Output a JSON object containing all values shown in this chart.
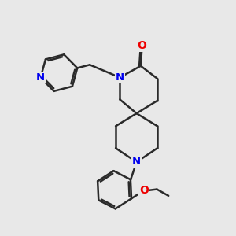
{
  "bg_color": "#e8e8e8",
  "bond_color": "#2a2a2a",
  "N_color": "#0000ee",
  "O_color": "#ee0000",
  "line_width": 1.8,
  "figsize": [
    3.0,
    3.0
  ],
  "dpi": 100,
  "xlim": [
    0,
    10
  ],
  "ylim": [
    0,
    10
  ]
}
